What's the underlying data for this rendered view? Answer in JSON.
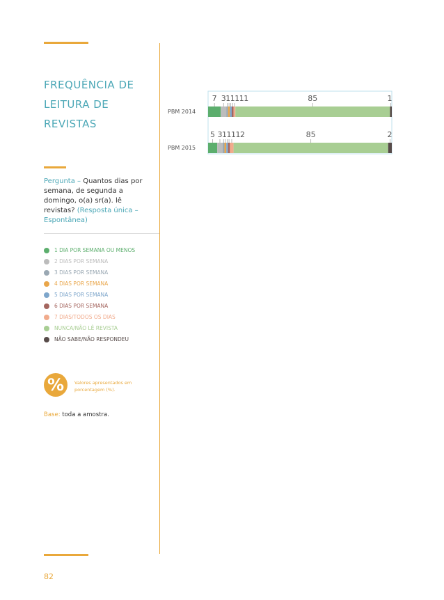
{
  "header": {
    "title": "FREQUÊNCIA DE LEITURA DE REVISTAS"
  },
  "question": {
    "label": "Pergunta –",
    "text": "Quantos dias por semana, de segunda a domingo, o(a) sr(a). lê revistas?",
    "note": "(Resposta única – Espontânea)"
  },
  "chart_data": {
    "type": "bar",
    "orientation": "horizontal",
    "stacked": true,
    "categories": [
      "PBM 2014",
      "PBM 2015"
    ],
    "series": [
      {
        "name": "1 DIA POR SEMANA OU MENOS",
        "color": "#5cae6d",
        "values": [
          7,
          5
        ]
      },
      {
        "name": "2 DIAS POR SEMANA",
        "color": "#bcbcbc",
        "values": [
          3,
          3
        ]
      },
      {
        "name": "3 DIAS POR SEMANA",
        "color": "#9aa8b3",
        "values": [
          1,
          1
        ]
      },
      {
        "name": "4 DIAS POR SEMANA",
        "color": "#e9a64a",
        "values": [
          1,
          1
        ]
      },
      {
        "name": "5 DIAS POR SEMANA",
        "color": "#7ea6cb",
        "values": [
          1,
          1
        ]
      },
      {
        "name": "6 DIAS POR SEMANA",
        "color": "#a4665f",
        "values": [
          1,
          1
        ]
      },
      {
        "name": "7 DIAS/TODOS OS DIAS",
        "color": "#f1ab8c",
        "values": [
          1,
          2
        ]
      },
      {
        "name": "NUNCA/NÃO LÊ REVISTA",
        "color": "#a8ce93",
        "values": [
          85,
          85
        ]
      },
      {
        "name": "NÃO SABE/NÃO RESPONDEU",
        "color": "#574b49",
        "values": [
          1,
          2
        ]
      }
    ]
  },
  "icon": "%",
  "notice": "Valores apresentados em porcentagem (%).",
  "base": {
    "label": "Base:",
    "text": "toda a amostra."
  },
  "page_number": "82"
}
